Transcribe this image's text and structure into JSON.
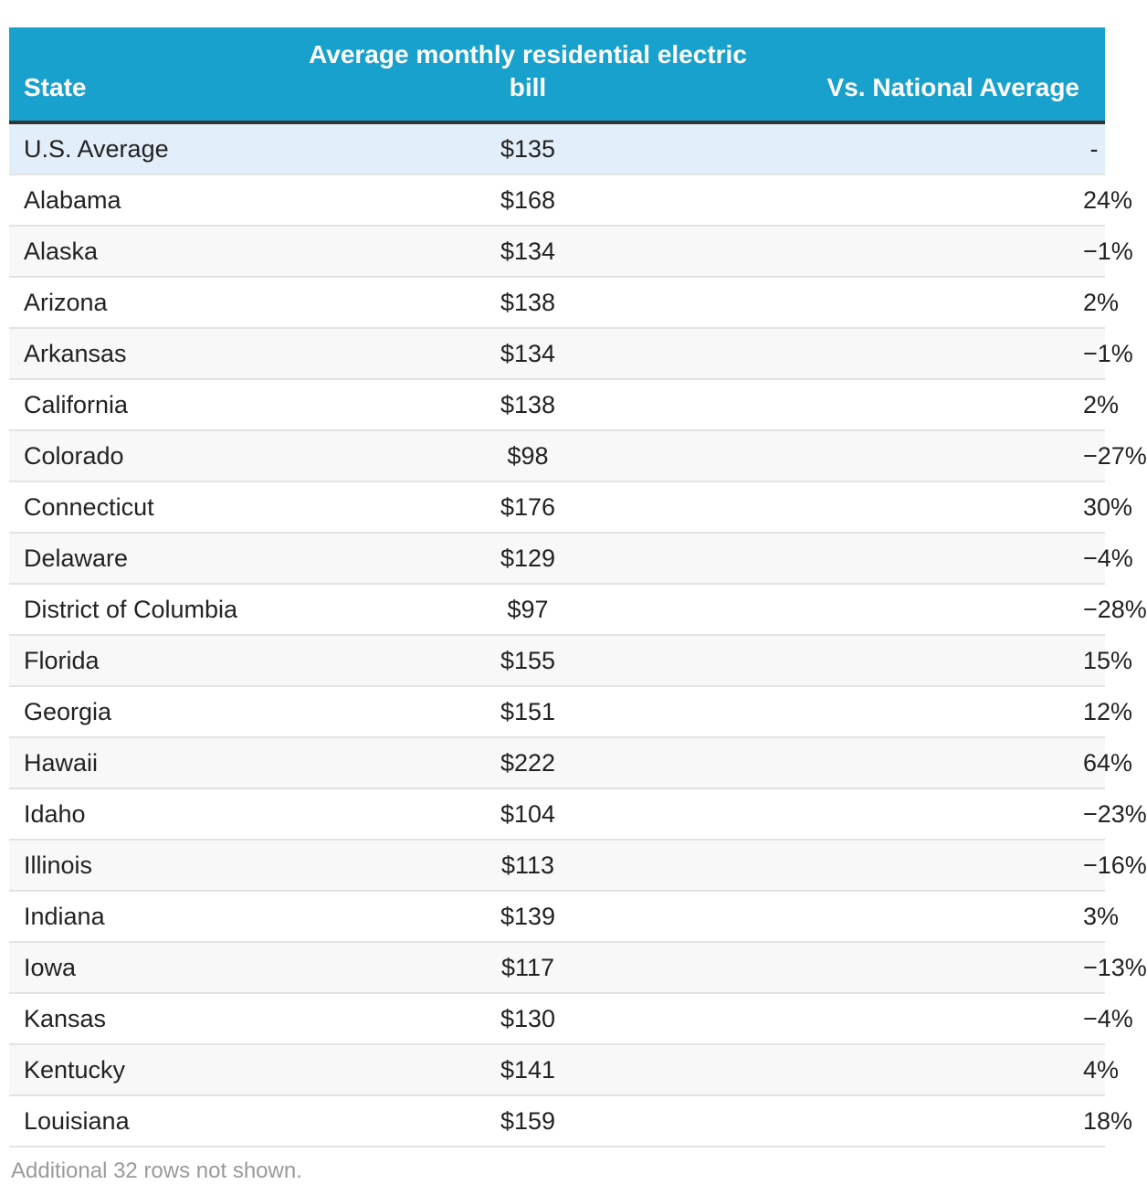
{
  "chart_data": {
    "type": "table",
    "columns": [
      "State",
      "Average monthly residential electric bill",
      "Vs. National Average"
    ],
    "rows": [
      {
        "state": "U.S. Average",
        "bill": "$135",
        "vs": "-"
      },
      {
        "state": "Alabama",
        "bill": "$168",
        "vs": "24%"
      },
      {
        "state": "Alaska",
        "bill": "$134",
        "vs": "−1%"
      },
      {
        "state": "Arizona",
        "bill": "$138",
        "vs": "2%"
      },
      {
        "state": "Arkansas",
        "bill": "$134",
        "vs": "−1%"
      },
      {
        "state": "California",
        "bill": "$138",
        "vs": "2%"
      },
      {
        "state": "Colorado",
        "bill": "$98",
        "vs": "−27%"
      },
      {
        "state": "Connecticut",
        "bill": "$176",
        "vs": "30%"
      },
      {
        "state": "Delaware",
        "bill": "$129",
        "vs": "−4%"
      },
      {
        "state": "District of Columbia",
        "bill": "$97",
        "vs": "−28%"
      },
      {
        "state": "Florida",
        "bill": "$155",
        "vs": "15%"
      },
      {
        "state": "Georgia",
        "bill": "$151",
        "vs": "12%"
      },
      {
        "state": "Hawaii",
        "bill": "$222",
        "vs": "64%"
      },
      {
        "state": "Idaho",
        "bill": "$104",
        "vs": "−23%"
      },
      {
        "state": "Illinois",
        "bill": "$113",
        "vs": "−16%"
      },
      {
        "state": "Indiana",
        "bill": "$139",
        "vs": "3%"
      },
      {
        "state": "Iowa",
        "bill": "$117",
        "vs": "−13%"
      },
      {
        "state": "Kansas",
        "bill": "$130",
        "vs": "−4%"
      },
      {
        "state": "Kentucky",
        "bill": "$141",
        "vs": "4%"
      },
      {
        "state": "Louisiana",
        "bill": "$159",
        "vs": "18%"
      }
    ],
    "footnote": "Additional 32 rows not shown."
  },
  "colors": {
    "header_background": "#18a1cd",
    "header_text": "#ffffff",
    "highlight_row": "#e2eef9",
    "striped_row": "#f8f8f8",
    "footnote_text": "#9a9a9a"
  }
}
